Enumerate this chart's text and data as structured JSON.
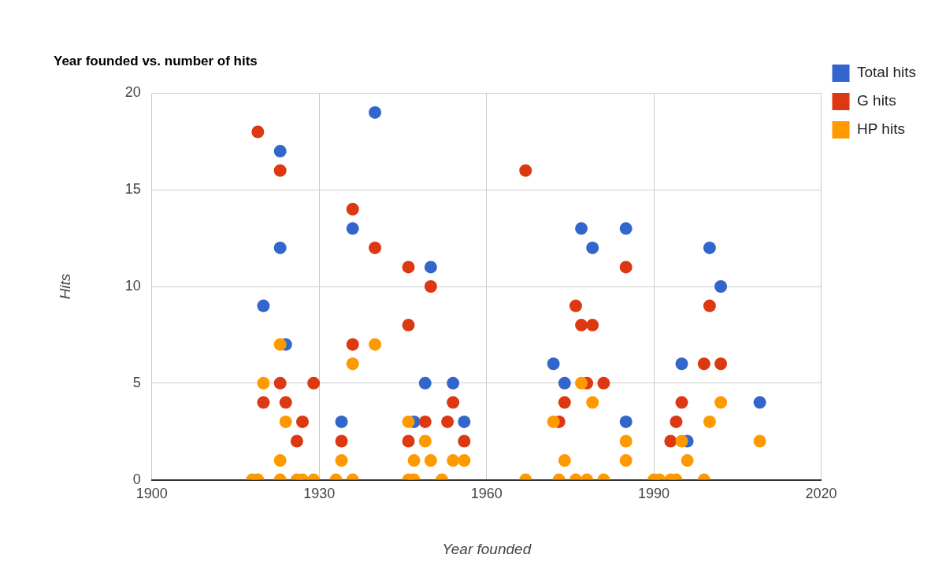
{
  "chart_data": {
    "type": "scatter",
    "title": "Year founded vs. number of hits",
    "xlabel": "Year founded",
    "ylabel": "Hits",
    "xlim": [
      1900,
      2020
    ],
    "xticks": [
      1900,
      1930,
      1960,
      1990,
      2020
    ],
    "ylim": [
      0,
      20
    ],
    "yticks": [
      0,
      5,
      10,
      15,
      20
    ],
    "grid": true,
    "legend": "top right",
    "marker": "circle",
    "series": [
      {
        "name": "Total hits",
        "color": "#3366cc",
        "x": [
          1920,
          1923,
          1923,
          1924,
          1934,
          1936,
          1940,
          1950,
          1949,
          1954,
          1956,
          1947,
          1972,
          1974,
          1977,
          1979,
          1985,
          1985,
          2000,
          2002,
          1995,
          1996,
          2009
        ],
        "values": [
          9,
          17,
          12,
          7,
          3,
          13,
          19,
          11,
          5,
          5,
          3,
          3,
          6,
          5,
          13,
          12,
          13,
          3,
          12,
          10,
          6,
          2,
          4
        ]
      },
      {
        "name": "G hits",
        "color": "#dc3912",
        "x": [
          1919,
          1923,
          1923,
          1920,
          1924,
          1927,
          1926,
          1929,
          1934,
          1936,
          1936,
          1940,
          1946,
          1946,
          1950,
          1949,
          1953,
          1954,
          1956,
          1946,
          1967,
          1976,
          1977,
          1979,
          1978,
          1981,
          1974,
          1973,
          1985,
          1999,
          2000,
          2002,
          1995,
          1994,
          1993
        ],
        "values": [
          18,
          16,
          5,
          4,
          4,
          3,
          2,
          5,
          2,
          14,
          7,
          12,
          11,
          8,
          10,
          3,
          3,
          4,
          2,
          2,
          16,
          9,
          8,
          8,
          5,
          5,
          4,
          3,
          11,
          6,
          9,
          6,
          4,
          3,
          2
        ]
      },
      {
        "name": "HP hits",
        "color": "#ff9900",
        "x": [
          1918,
          1919,
          1923,
          1926,
          1927,
          1929,
          1933,
          1936,
          1946,
          1947,
          1952,
          1967,
          1973,
          1976,
          1978,
          1981,
          1990,
          1991,
          1993,
          1994,
          1999,
          1920,
          1923,
          1924,
          1923,
          1934,
          1936,
          1940,
          1946,
          1947,
          1949,
          1950,
          1954,
          1956,
          1972,
          1974,
          1977,
          1979,
          1985,
          1985,
          1995,
          1996,
          2000,
          2002,
          2009
        ],
        "values": [
          0,
          0,
          0,
          0,
          0,
          0,
          0,
          0,
          0,
          0,
          0,
          0,
          0,
          0,
          0,
          0,
          0,
          0,
          0,
          0,
          0,
          5,
          7,
          3,
          1,
          1,
          6,
          7,
          3,
          1,
          2,
          1,
          1,
          1,
          3,
          1,
          5,
          4,
          2,
          1,
          2,
          1,
          3,
          4,
          2
        ]
      }
    ]
  }
}
